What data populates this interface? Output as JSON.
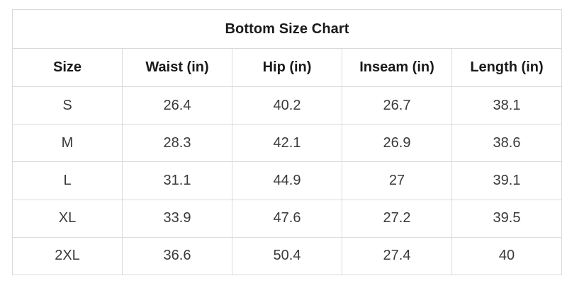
{
  "title": "Bottom Size Chart",
  "table": {
    "columns": [
      "Size",
      "Waist (in)",
      "Hip (in)",
      "Inseam (in)",
      "Length (in)"
    ],
    "rows": [
      [
        "S",
        "26.4",
        "40.2",
        "26.7",
        "38.1"
      ],
      [
        "M",
        "28.3",
        "42.1",
        "26.9",
        "38.6"
      ],
      [
        "L",
        "31.1",
        "44.9",
        "27",
        "39.1"
      ],
      [
        "XL",
        "33.9",
        "47.6",
        "27.2",
        "39.5"
      ],
      [
        "2XL",
        "36.6",
        "50.4",
        "27.4",
        "40"
      ]
    ]
  },
  "chart_data": {
    "type": "table",
    "title": "Bottom Size Chart",
    "columns": [
      "Size",
      "Waist (in)",
      "Hip (in)",
      "Inseam (in)",
      "Length (in)"
    ],
    "rows": [
      {
        "size": "S",
        "waist_in": 26.4,
        "hip_in": 40.2,
        "inseam_in": 26.7,
        "length_in": 38.1
      },
      {
        "size": "M",
        "waist_in": 28.3,
        "hip_in": 42.1,
        "inseam_in": 26.9,
        "length_in": 38.6
      },
      {
        "size": "L",
        "waist_in": 31.1,
        "hip_in": 44.9,
        "inseam_in": 27,
        "length_in": 39.1
      },
      {
        "size": "XL",
        "waist_in": 33.9,
        "hip_in": 47.6,
        "inseam_in": 27.2,
        "length_in": 39.5
      },
      {
        "size": "2XL",
        "waist_in": 36.6,
        "hip_in": 50.4,
        "inseam_in": 27.4,
        "length_in": 40
      }
    ]
  },
  "colors": {
    "background": "#ffffff",
    "border": "#d9dbd9",
    "heading_text": "#1a1a1a",
    "body_text": "#3a3a3a"
  }
}
